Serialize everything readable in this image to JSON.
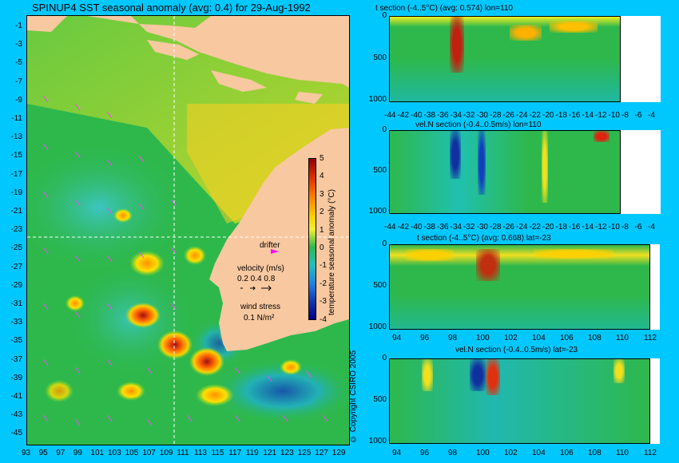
{
  "map": {
    "title": "SPINUP4 SST seasonal anomaly (avg: 0.4) for 29-Aug-1992",
    "lat_ticks": [
      "-1",
      "-3",
      "-5",
      "-7",
      "-9",
      "-11",
      "-13",
      "-15",
      "-17",
      "-19",
      "-21",
      "-23",
      "-25",
      "-27",
      "-29",
      "-31",
      "-33",
      "-35",
      "-37",
      "-39",
      "-41",
      "-43",
      "-45"
    ],
    "lon_ticks": [
      "93",
      "95",
      "97",
      "99",
      "101",
      "103",
      "105",
      "107",
      "109",
      "111",
      "113",
      "115",
      "117",
      "119",
      "121",
      "123",
      "125",
      "127",
      "129"
    ],
    "section_lat": -23,
    "section_lon": 110,
    "colorbar": {
      "label": "temperature seasonal anomaly (°C)",
      "ticks": [
        "5",
        "4",
        "3",
        "2",
        "1",
        "0",
        "-1",
        "-2",
        "-3",
        "-4"
      ],
      "range": [
        -4,
        5
      ]
    },
    "legend": {
      "drifter": "drifter",
      "velocity_title": "velocity (m/s)",
      "velocity_scale": "0.2 0.4 0.8",
      "wind_title": "wind stress",
      "wind_scale": "0.1 N/m²"
    },
    "copyright": "© Copyright CSIRO 2005"
  },
  "panels": [
    {
      "title": "t section (-4..5°C) (avg: 0.574) lon=110",
      "y_ticks": [
        "0",
        "500",
        "1000"
      ],
      "x_ticks": [
        "-44",
        "-42",
        "-40",
        "-38",
        "-36",
        "-34",
        "-32",
        "-30",
        "-28",
        "-26",
        "-24",
        "-22",
        "-20",
        "-18",
        "-16",
        "-14",
        "-12",
        "-10",
        "-8",
        "-6",
        "-4"
      ]
    },
    {
      "title": "vel.N section (-0.4..0.5m/s) lon=110",
      "y_ticks": [
        "0",
        "500",
        "1000"
      ],
      "x_ticks": [
        "-44",
        "-42",
        "-40",
        "-38",
        "-36",
        "-34",
        "-32",
        "-30",
        "-28",
        "-26",
        "-24",
        "-22",
        "-20",
        "-18",
        "-16",
        "-14",
        "-12",
        "-10",
        "-8",
        "-6",
        "-4"
      ]
    },
    {
      "title": "t section (-4..5°C) (avg: 0.668) lat=-23",
      "y_ticks": [
        "0",
        "500",
        "1000"
      ],
      "x_ticks": [
        "94",
        "96",
        "98",
        "100",
        "102",
        "104",
        "106",
        "108",
        "110",
        "112"
      ]
    },
    {
      "title": "vel.N section (-0.4..0.5m/s) lat=-23",
      "y_ticks": [
        "0",
        "500",
        "1000"
      ],
      "x_ticks": [
        "94",
        "96",
        "98",
        "100",
        "102",
        "104",
        "106",
        "108",
        "110",
        "112"
      ]
    }
  ],
  "colors": {
    "background": "#00c8ff",
    "land": "#f8c8a0",
    "ocean_base": "#2eb84c",
    "crosshair": "#ffffff",
    "drifter": "#ff00ff"
  }
}
